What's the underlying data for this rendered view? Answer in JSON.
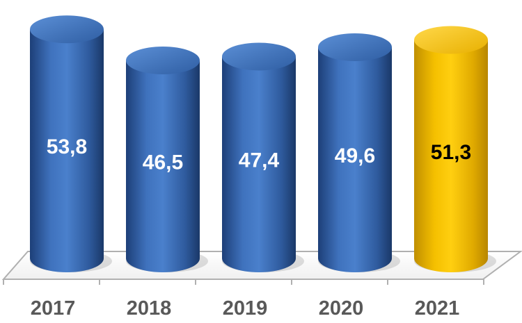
{
  "chart_data": {
    "type": "bar",
    "style": "3d-cylinder",
    "categories": [
      "2017",
      "2018",
      "2019",
      "2020",
      "2021"
    ],
    "values": [
      53.8,
      46.5,
      47.4,
      49.6,
      51.3
    ],
    "value_labels": [
      "53,8",
      "46,5",
      "47,4",
      "49,6",
      "51,3"
    ],
    "colors": [
      "#3e6fb9",
      "#3e6fb9",
      "#3e6fb9",
      "#3e6fb9",
      "#f2bd00"
    ],
    "label_colors": [
      "#ffffff",
      "#ffffff",
      "#ffffff",
      "#ffffff",
      "#000000"
    ],
    "ylim": [
      0,
      56
    ],
    "grid": false,
    "legend": false
  }
}
